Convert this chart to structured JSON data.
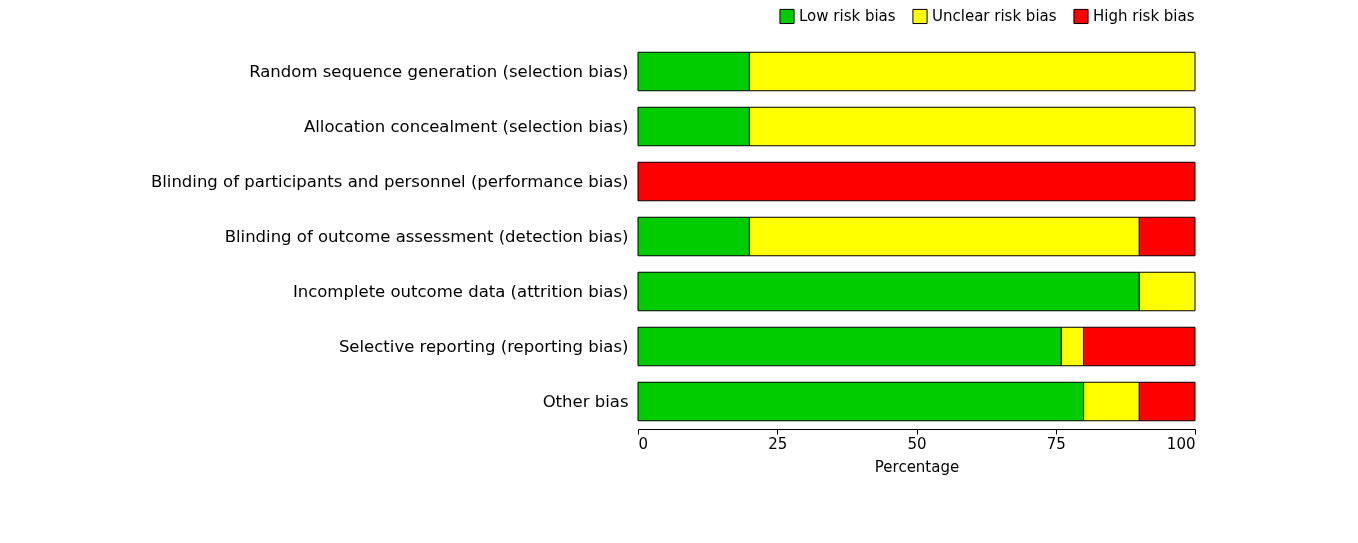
{
  "chart_data": {
    "type": "bar",
    "orientation": "horizontal",
    "stacked": true,
    "xlabel": "Percentage",
    "categories": [
      "Random sequence generation (selection bias)",
      "Allocation concealment (selection bias)",
      "Blinding of participants and personnel (performance bias)",
      "Blinding of outcome assessment (detection bias)",
      "Incomplete outcome data (attrition bias)",
      "Selective reporting (reporting bias)",
      "Other bias"
    ],
    "series": [
      {
        "name": "Low risk bias",
        "color": "#00cc00",
        "values": [
          20,
          20,
          null,
          20,
          90,
          76,
          80
        ]
      },
      {
        "name": "Unclear risk bias",
        "color": "#ffff00",
        "values": [
          80,
          80,
          null,
          70,
          10,
          4,
          10
        ]
      },
      {
        "name": "High risk bias",
        "color": "#ff0000",
        "values": [
          null,
          null,
          100,
          10,
          null,
          20,
          10
        ]
      }
    ],
    "xlim": [
      0,
      100
    ],
    "xticks": [
      0,
      25,
      50,
      75,
      100
    ],
    "grid": false,
    "legend": "top right"
  }
}
